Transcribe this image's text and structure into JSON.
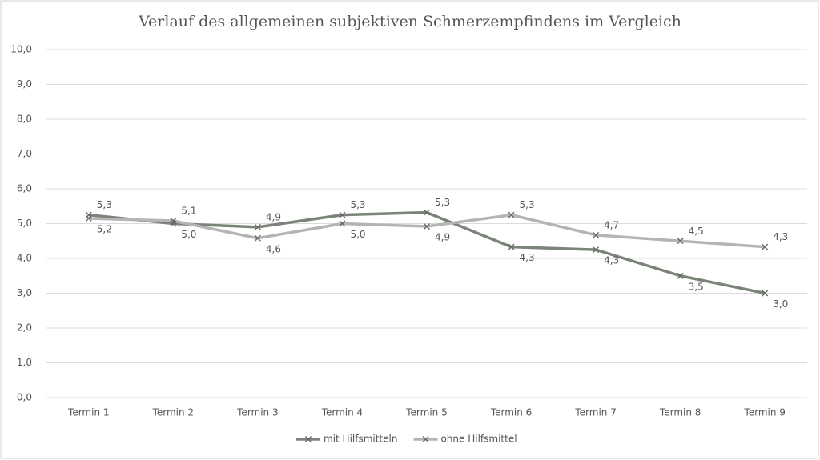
{
  "chart_data": {
    "type": "line",
    "title": "Verlauf des allgemeinen subjektiven Schmerzempfindens im Vergleich",
    "categories": [
      "Termin 1",
      "Termin 2",
      "Termin 3",
      "Termin 4",
      "Termin 5",
      "Termin 6",
      "Termin 7",
      "Termin 8",
      "Termin 9"
    ],
    "series": [
      {
        "name": "mit Hilfsmitteln",
        "color": "#7b8479",
        "values": [
          5.25,
          5.0,
          4.9,
          5.25,
          5.32,
          4.33,
          4.25,
          3.5,
          3.0
        ],
        "value_labels": [
          "5,3",
          "5,0",
          "4,9",
          "5,3",
          "5,3",
          "4,3",
          "4,3",
          "3,5",
          "3,0"
        ]
      },
      {
        "name": "ohne Hilfsmittel",
        "color": "#b4b4b4",
        "values": [
          5.15,
          5.08,
          4.58,
          5.0,
          4.92,
          5.25,
          4.67,
          4.5,
          4.33
        ],
        "value_labels": [
          "5,2",
          "5,1",
          "4,6",
          "5,0",
          "4,9",
          "5,3",
          "4,7",
          "4,5",
          "4,3"
        ]
      }
    ],
    "ylim": [
      0,
      10
    ],
    "yticks": [
      {
        "value": 0,
        "label": "0,0"
      },
      {
        "value": 1,
        "label": "1,0"
      },
      {
        "value": 2,
        "label": "2,0"
      },
      {
        "value": 3,
        "label": "3,0"
      },
      {
        "value": 4,
        "label": "4,0"
      },
      {
        "value": 5,
        "label": "5,0"
      },
      {
        "value": 6,
        "label": "6,0"
      },
      {
        "value": 7,
        "label": "7,0"
      },
      {
        "value": 8,
        "label": "8,0"
      },
      {
        "value": 9,
        "label": "9,0"
      },
      {
        "value": 10,
        "label": "10,0"
      }
    ],
    "grid": true,
    "legend": "bottom"
  }
}
